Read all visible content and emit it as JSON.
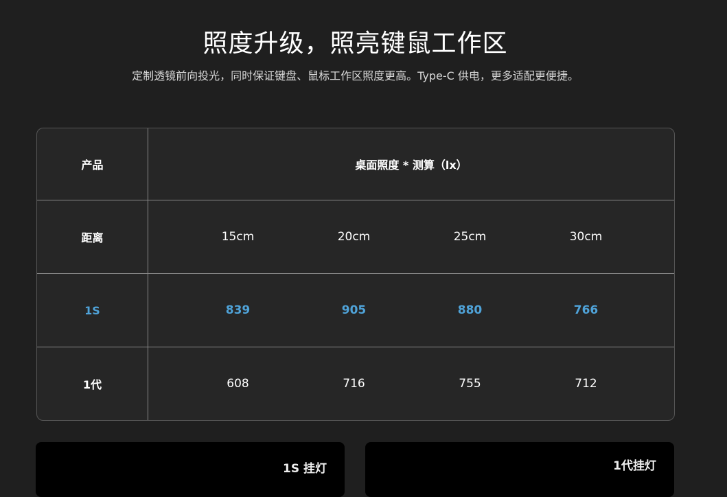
{
  "header": {
    "title": "照度升级，照亮键鼠工作区",
    "subtitle": "定制透镜前向投光，同时保证键盘、鼠标工作区照度更高。Type-C 供电，更多适配更便捷。"
  },
  "table": {
    "product_label": "产品",
    "measure_header": "桌面照度 * 测算（lx）",
    "distance_label": "距离",
    "distances": [
      "15cm",
      "20cm",
      "25cm",
      "30cm"
    ],
    "rows": [
      {
        "name": "1S",
        "values": [
          "839",
          "905",
          "880",
          "766"
        ],
        "highlight": true
      },
      {
        "name": "1代",
        "values": [
          "608",
          "716",
          "755",
          "712"
        ],
        "highlight": false
      }
    ],
    "highlight_color": "#4fa3d9"
  },
  "cards": [
    {
      "label": "1S 挂灯"
    },
    {
      "label": "1代挂灯"
    }
  ]
}
